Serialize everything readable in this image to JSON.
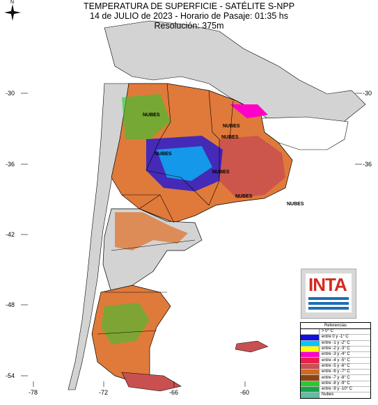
{
  "title": {
    "line1": "TEMPERATURA DE SUPERFICIE - SATÉLITE S-NPP",
    "line2": "14 de JULIO de 2023 - Horario de Pasaje: 01:35 hs",
    "line3": "Resolución: 375m"
  },
  "compass": {
    "label": "N"
  },
  "lat_ticks": [
    "-30",
    "-36",
    "-42",
    "-48",
    "-54"
  ],
  "lon_ticks": [
    "-78",
    "-72",
    "-66",
    "-60"
  ],
  "cloud_labels": [
    "NUBES",
    "NUBES",
    "NUBES",
    "NUBES",
    "NUBES",
    "NUBES",
    "NUBES"
  ],
  "logo": {
    "text": "INTA"
  },
  "legend": {
    "title": "Referencias",
    "items": [
      {
        "label": "> 0° C",
        "color": "#ffffff"
      },
      {
        "label": "entre 0 y -1° C",
        "color": "#1010e0"
      },
      {
        "label": "entre -1 y -2° C",
        "color": "#00c8ff"
      },
      {
        "label": "entre -2 y -3° C",
        "color": "#ffff00"
      },
      {
        "label": "entre -3 y -4° C",
        "color": "#ff00c8"
      },
      {
        "label": "entre -4 y -5° C",
        "color": "#e8204a"
      },
      {
        "label": "entre -5 y -6° C",
        "color": "#c85050"
      },
      {
        "label": "entre -6 y -7° C",
        "color": "#d2691e"
      },
      {
        "label": "entre -7 y -8° C",
        "color": "#8b4513"
      },
      {
        "label": "entre -8 y -9° C",
        "color": "#2ec82e"
      },
      {
        "label": "entre -9 y -10° C",
        "color": "#17a34a"
      },
      {
        "label": "Nubes",
        "color": "#5fbfa0"
      }
    ]
  },
  "colors": {
    "land_outside": "#d3d3d3",
    "ocean": "#ffffff",
    "warm": "#e07a3a",
    "very_warm": "#c85050",
    "cold": "#1010e0",
    "green": "#2ec82e",
    "pink": "#ff00c8"
  }
}
